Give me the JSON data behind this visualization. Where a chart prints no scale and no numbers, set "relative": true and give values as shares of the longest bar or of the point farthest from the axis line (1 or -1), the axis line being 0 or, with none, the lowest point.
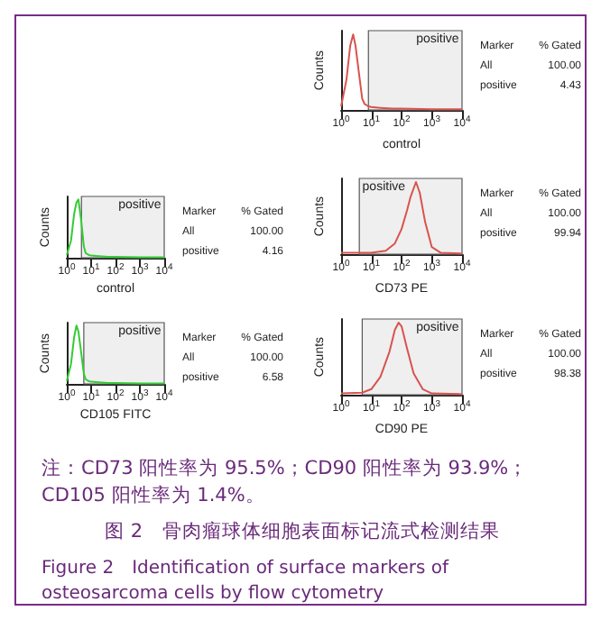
{
  "chart_data": [
    {
      "type": "line",
      "relative": true,
      "ylabel": "Counts",
      "xlabel": "control",
      "log": "x",
      "xlim": [
        1,
        10000
      ],
      "xticks": [
        {
          "value": 1,
          "label": "10$^{0}$"
        },
        {
          "value": 10,
          "label": "10$^{1}$"
        },
        {
          "value": 100,
          "label": "10$^{2}$"
        },
        {
          "value": 1000,
          "label": "10$^{3}$"
        },
        {
          "value": 10000,
          "label": "10$^{4}$"
        }
      ],
      "grid": false,
      "marker": "none",
      "line_style": "solid",
      "series": [
        {
          "color": "#d9534f",
          "x": [
            1,
            1.5,
            2,
            2.5,
            3,
            4,
            5,
            6,
            8,
            10,
            20,
            50,
            100,
            1000,
            10000
          ],
          "values": [
            0.05,
            0.4,
            0.85,
            1,
            0.85,
            0.45,
            0.15,
            0.08,
            0.05,
            0.04,
            0.03,
            0.02,
            0.02,
            0.01,
            0.01
          ]
        }
      ],
      "bands": [
        {
          "axis": "x",
          "from": 8,
          "to": 10000,
          "label": "positive"
        }
      ],
      "annotations": [
        "Marker",
        "% Gated",
        "All",
        "100.00",
        "positive",
        "4.43"
      ]
    },
    {
      "type": "line",
      "relative": true,
      "ylabel": "Counts",
      "xlabel": "control",
      "log": "x",
      "xlim": [
        1,
        10000
      ],
      "xticks": [
        {
          "value": 1,
          "label": "10$^{0}$"
        },
        {
          "value": 10,
          "label": "10$^{1}$"
        },
        {
          "value": 100,
          "label": "10$^{2}$"
        },
        {
          "value": 1000,
          "label": "10$^{3}$"
        },
        {
          "value": 10000,
          "label": "10$^{4}$"
        }
      ],
      "grid": false,
      "marker": "none",
      "line_style": "solid",
      "series": [
        {
          "color": "#33cc33",
          "x": [
            1,
            1.5,
            2,
            2.5,
            3,
            4,
            5,
            6,
            8,
            10,
            20,
            50,
            100,
            1000,
            10000
          ],
          "values": [
            0.05,
            0.3,
            0.75,
            0.95,
            1,
            0.6,
            0.2,
            0.08,
            0.05,
            0.04,
            0.03,
            0.02,
            0.02,
            0.01,
            0.01
          ]
        }
      ],
      "bands": [
        {
          "axis": "x",
          "from": 4,
          "to": 10000,
          "label": "positive"
        }
      ],
      "annotations": [
        "Marker",
        "% Gated",
        "All",
        "100.00",
        "positive",
        "4.16"
      ]
    },
    {
      "type": "line",
      "relative": true,
      "ylabel": "Counts",
      "xlabel": "CD73 PE",
      "log": "x",
      "xlim": [
        1,
        10000
      ],
      "xticks": [
        {
          "value": 1,
          "label": "10$^{0}$"
        },
        {
          "value": 10,
          "label": "10$^{1}$"
        },
        {
          "value": 100,
          "label": "10$^{2}$"
        },
        {
          "value": 1000,
          "label": "10$^{3}$"
        },
        {
          "value": 10000,
          "label": "10$^{4}$"
        }
      ],
      "grid": false,
      "marker": "none",
      "line_style": "solid",
      "series": [
        {
          "color": "#d9534f",
          "x": [
            1,
            10,
            30,
            60,
            100,
            150,
            200,
            300,
            400,
            600,
            1000,
            2000,
            10000
          ],
          "values": [
            0.02,
            0.02,
            0.05,
            0.15,
            0.35,
            0.6,
            0.8,
            1,
            0.85,
            0.45,
            0.1,
            0.02,
            0.01
          ]
        }
      ],
      "bands": [
        {
          "axis": "x",
          "from": 4,
          "to": 10000,
          "label": "positive"
        }
      ],
      "annotations": [
        "Marker",
        "% Gated",
        "All",
        "100.00",
        "positive",
        "99.94"
      ]
    },
    {
      "type": "line",
      "relative": true,
      "ylabel": "Counts",
      "xlabel": "CD105 FITC",
      "log": "x",
      "xlim": [
        1,
        10000
      ],
      "xticks": [
        {
          "value": 1,
          "label": "10$^{0}$"
        },
        {
          "value": 10,
          "label": "10$^{1}$"
        },
        {
          "value": 100,
          "label": "10$^{2}$"
        },
        {
          "value": 1000,
          "label": "10$^{3}$"
        },
        {
          "value": 10000,
          "label": "10$^{4}$"
        }
      ],
      "grid": false,
      "marker": "none",
      "line_style": "solid",
      "series": [
        {
          "color": "#33cc33",
          "x": [
            1,
            1.5,
            2,
            2.5,
            3,
            4,
            5,
            6,
            8,
            10,
            20,
            50,
            100,
            1000,
            10000
          ],
          "values": [
            0.05,
            0.35,
            0.8,
            1,
            0.9,
            0.5,
            0.18,
            0.08,
            0.05,
            0.04,
            0.03,
            0.02,
            0.02,
            0.01,
            0.01
          ]
        }
      ],
      "bands": [
        {
          "axis": "x",
          "from": 5,
          "to": 10000,
          "label": "positive"
        }
      ],
      "annotations": [
        "Marker",
        "% Gated",
        "All",
        "100.00",
        "positive",
        "6.58"
      ]
    },
    {
      "type": "line",
      "relative": true,
      "ylabel": "Counts",
      "xlabel": "CD90 PE",
      "log": "x",
      "xlim": [
        1,
        10000
      ],
      "xticks": [
        {
          "value": 1,
          "label": "10$^{0}$"
        },
        {
          "value": 10,
          "label": "10$^{1}$"
        },
        {
          "value": 100,
          "label": "10$^{2}$"
        },
        {
          "value": 1000,
          "label": "10$^{3}$"
        },
        {
          "value": 10000,
          "label": "10$^{4}$"
        }
      ],
      "grid": false,
      "marker": "none",
      "line_style": "solid",
      "series": [
        {
          "color": "#d9534f",
          "x": [
            1,
            5,
            10,
            20,
            40,
            60,
            80,
            100,
            150,
            250,
            500,
            1000,
            10000
          ],
          "values": [
            0.02,
            0.03,
            0.08,
            0.25,
            0.6,
            0.9,
            1,
            0.95,
            0.65,
            0.3,
            0.08,
            0.02,
            0.01
          ]
        }
      ],
      "bands": [
        {
          "axis": "x",
          "from": 5,
          "to": 10000,
          "label": "positive"
        }
      ],
      "annotations": [
        "Marker",
        "% Gated",
        "All",
        "100.00",
        "positive",
        "98.38"
      ]
    },
    {
      "type": "other",
      "annotations": [
        "注：CD73 阳性率为 95.5%；CD90 阳性率为 93.9%；CD105 阳性率为 1.4%。",
        "图 2　骨肉瘤球体细胞表面标记流式检测结果",
        "Figure 2　Identification of surface markers of osteosarcoma cells by flow cytometry"
      ]
    }
  ]
}
